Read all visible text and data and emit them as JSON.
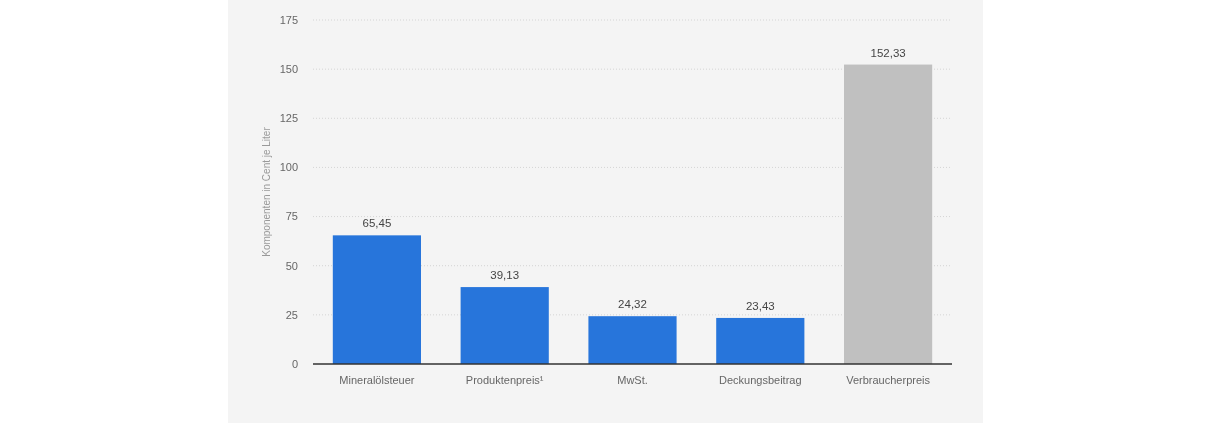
{
  "chart_data": {
    "type": "bar",
    "ylabel": "Komponenten in Cent je Liter",
    "categories": [
      "Mineralölsteuer",
      "Produktenpreis¹",
      "MwSt.",
      "Deckungsbeitrag",
      "Verbraucherpreis"
    ],
    "values": [
      65.45,
      39.13,
      24.32,
      23.43,
      152.33
    ],
    "colors": [
      "#2775db",
      "#2775db",
      "#2775db",
      "#2775db",
      "#c0c0c0"
    ],
    "value_labels": [
      "65,45",
      "39,13",
      "24,32",
      "23,43",
      "152,33"
    ],
    "ylim": [
      0,
      175
    ],
    "yticks": [
      0,
      25,
      50,
      75,
      100,
      125,
      150,
      175
    ],
    "grid": "y"
  }
}
